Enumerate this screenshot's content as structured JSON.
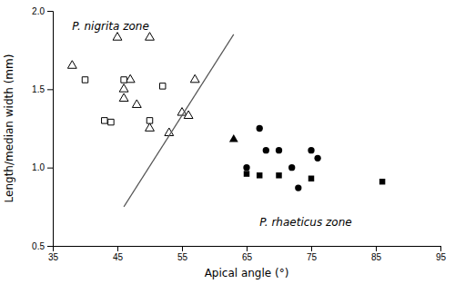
{
  "chart_data": {
    "type": "scatter",
    "xlabel": "Apical angle (°)",
    "ylabel": "Length/median width (mm)",
    "xlim": [
      35,
      95
    ],
    "ylim": [
      0.5,
      2.0
    ],
    "xticks": [
      35,
      45,
      55,
      65,
      75,
      85,
      95
    ],
    "yticks": [
      0.5,
      {
        "value": 1.0,
        "label": "1.0"
      },
      1.5,
      {
        "value": 2.0,
        "label": "2.0"
      }
    ],
    "series": [
      {
        "type": "scatter",
        "marker": "circle",
        "color": "#000000",
        "x": [
          65,
          67,
          68,
          70,
          72,
          73,
          75,
          76
        ],
        "values": [
          1.0,
          1.25,
          1.11,
          1.11,
          1.0,
          0.87,
          1.11,
          1.06
        ]
      },
      {
        "type": "scatter",
        "marker": "square",
        "color": "#000000",
        "x": [
          65,
          67,
          70,
          75,
          86
        ],
        "values": [
          0.96,
          0.95,
          0.95,
          0.93,
          0.91
        ]
      },
      {
        "type": "scatter",
        "marker": "triangle",
        "color": "#000000",
        "x": [
          63
        ],
        "values": [
          1.18
        ]
      },
      {
        "type": "scatter",
        "marker": "triangle-open",
        "color": "#000000",
        "x": [
          38,
          45,
          50,
          46,
          47,
          46,
          48,
          50,
          53,
          55,
          56,
          57
        ],
        "values": [
          1.65,
          1.83,
          1.83,
          1.5,
          1.56,
          1.44,
          1.4,
          1.25,
          1.22,
          1.35,
          1.33,
          1.56
        ]
      },
      {
        "type": "scatter",
        "marker": "square-open",
        "color": "#000000",
        "x": [
          40,
          43,
          44,
          46,
          52,
          50
        ],
        "values": [
          1.56,
          1.3,
          1.29,
          1.56,
          1.52,
          1.3
        ]
      },
      {
        "type": "line",
        "color": "#555555",
        "x": [
          46,
          63
        ],
        "values": [
          0.75,
          1.85
        ]
      }
    ],
    "annotations": [
      {
        "text": "P. nigrita zone",
        "x": 38,
        "y": 1.93
      },
      {
        "text": "P. rhaeticus zone",
        "x": 67,
        "y": 0.63
      }
    ]
  }
}
